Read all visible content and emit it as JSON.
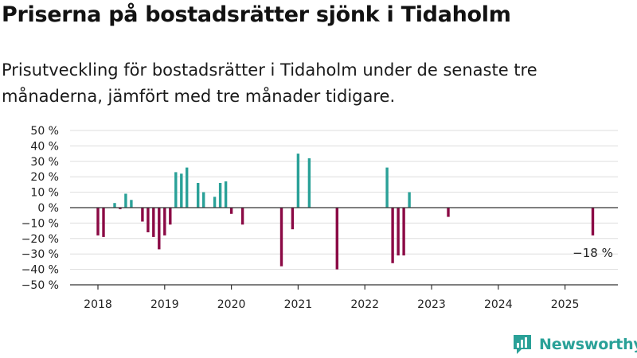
{
  "title": "Priserna på bostadsrätter sjönk i Tidaholm",
  "subtitle": "Prisutveckling för bostadsrätter i Tidaholm under de senaste tre månaderna, jämfört med tre månader tidigare.",
  "brand": {
    "name": "Newsworthy",
    "logo_icon": "newsworthy-logo-icon"
  },
  "colors": {
    "positive": "#2aa198",
    "negative": "#8b0a45",
    "grid": "#dddddd",
    "axis": "#333333",
    "text": "#222222"
  },
  "chart_data": {
    "type": "bar",
    "title": "",
    "xlabel": "",
    "ylabel": "",
    "ylim": [
      -50,
      50
    ],
    "y_ticks": [
      50,
      40,
      30,
      20,
      10,
      0,
      -10,
      -20,
      -30,
      -40,
      -50
    ],
    "y_tick_labels": [
      "50 %",
      "40 %",
      "30 %",
      "20 %",
      "10 %",
      "0 %",
      "−10 %",
      "−20 %",
      "−30 %",
      "−40 %",
      "−50 %"
    ],
    "x_ticks": [
      2018,
      2019,
      2020,
      2021,
      2022,
      2023,
      2024,
      2025
    ],
    "x_tick_labels": [
      "2018",
      "2019",
      "2020",
      "2021",
      "2022",
      "2023",
      "2024",
      "2025"
    ],
    "grid": true,
    "x_unit": "month",
    "x": [
      "2018-01",
      "2018-02",
      "2018-04",
      "2018-05",
      "2018-06",
      "2018-07",
      "2018-09",
      "2018-10",
      "2018-11",
      "2018-12",
      "2019-01",
      "2019-02",
      "2019-03",
      "2019-04",
      "2019-05",
      "2019-07",
      "2019-08",
      "2019-10",
      "2019-11",
      "2019-12",
      "2020-01",
      "2020-03",
      "2020-10",
      "2020-12",
      "2021-01",
      "2021-03",
      "2021-08",
      "2022-05",
      "2022-06",
      "2022-07",
      "2022-08",
      "2022-09",
      "2023-04",
      "2025-06"
    ],
    "values": [
      -18,
      -19,
      3,
      -1,
      9,
      5,
      -9,
      -16,
      -19,
      -27,
      -18,
      -11,
      23,
      22,
      26,
      16,
      10,
      7,
      16,
      17,
      -4,
      -11,
      -38,
      -14,
      35,
      32,
      -40,
      26,
      -36,
      -31,
      -31,
      10,
      -6,
      -18
    ],
    "annotations": [
      {
        "x": "2025-06",
        "text": "−18 %"
      }
    ]
  }
}
